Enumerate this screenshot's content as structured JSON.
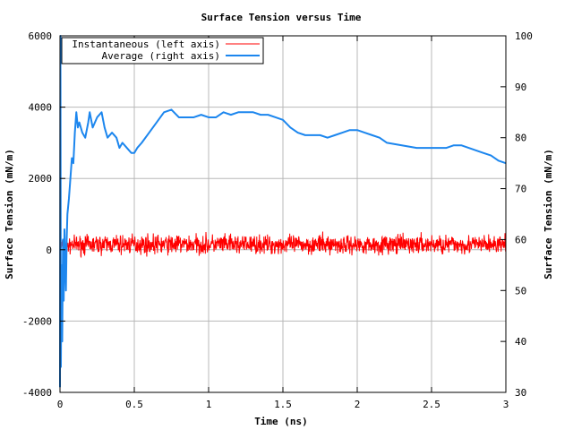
{
  "chart_data": {
    "type": "line",
    "title": "Surface Tension versus Time",
    "xlabel": "Time (ns)",
    "ylabel_left": "Surface Tension (mN/m)",
    "ylabel_right": "Surface Tension (mN/m)",
    "xlim": [
      0,
      3
    ],
    "ylim_left": [
      -4000,
      6000
    ],
    "ylim_right": [
      30,
      100
    ],
    "x_ticks": [
      0,
      0.5,
      1,
      1.5,
      2,
      2.5,
      3
    ],
    "x_tick_labels": [
      "0",
      "0.5",
      "1",
      "1.5",
      "2",
      "2.5",
      "3"
    ],
    "y_left_ticks": [
      -4000,
      -2000,
      0,
      2000,
      4000,
      6000
    ],
    "y_left_tick_labels": [
      "-4000",
      "-2000",
      "0",
      "2000",
      "4000",
      "6000"
    ],
    "y_right_ticks": [
      30,
      40,
      50,
      60,
      70,
      80,
      90,
      100
    ],
    "y_right_tick_labels": [
      "30",
      "40",
      "50",
      "60",
      "70",
      "80",
      "90",
      "100"
    ],
    "grid": true,
    "legend_position": "top-left",
    "series": [
      {
        "name": "Instantaneous (left axis)",
        "axis": "left",
        "color": "#ff0000",
        "style": "noisy band around mean",
        "x": [
          0,
          0.01,
          0.02,
          0.04,
          0.06,
          0.1,
          0.5,
          1.0,
          1.5,
          1.8,
          2.0,
          2.5,
          3.0
        ],
        "y_mean": [
          0,
          100,
          150,
          150,
          150,
          150,
          150,
          150,
          150,
          150,
          150,
          150,
          150
        ],
        "y_min": [
          -400,
          -400,
          -250,
          -200,
          -200,
          -250,
          -250,
          -250,
          -250,
          -250,
          -250,
          -250,
          -250
        ],
        "y_max": [
          400,
          400,
          350,
          350,
          350,
          500,
          550,
          550,
          500,
          550,
          500,
          550,
          500
        ]
      },
      {
        "name": "Average (right axis)",
        "axis": "right",
        "color": "#1c86ee",
        "x": [
          0,
          0.003,
          0.006,
          0.01,
          0.015,
          0.02,
          0.025,
          0.03,
          0.035,
          0.04,
          0.045,
          0.05,
          0.06,
          0.07,
          0.08,
          0.09,
          0.1,
          0.11,
          0.12,
          0.13,
          0.15,
          0.17,
          0.19,
          0.2,
          0.22,
          0.25,
          0.28,
          0.3,
          0.32,
          0.35,
          0.38,
          0.4,
          0.42,
          0.45,
          0.48,
          0.5,
          0.52,
          0.55,
          0.6,
          0.65,
          0.7,
          0.75,
          0.8,
          0.85,
          0.9,
          0.95,
          1.0,
          1.05,
          1.1,
          1.15,
          1.2,
          1.25,
          1.3,
          1.35,
          1.4,
          1.45,
          1.5,
          1.55,
          1.6,
          1.65,
          1.7,
          1.75,
          1.8,
          1.85,
          1.9,
          1.95,
          2.0,
          2.05,
          2.1,
          2.15,
          2.2,
          2.3,
          2.4,
          2.5,
          2.55,
          2.6,
          2.65,
          2.7,
          2.75,
          2.8,
          2.85,
          2.9,
          2.95,
          3.0
        ],
        "y": [
          31,
          100,
          35,
          55,
          40,
          60,
          48,
          62,
          55,
          50,
          60,
          65,
          68,
          72,
          76,
          75,
          81,
          85,
          82,
          83,
          81,
          80,
          83,
          85,
          82,
          84,
          85,
          82,
          80,
          81,
          80,
          78,
          79,
          78,
          77,
          77,
          78,
          79,
          81,
          83,
          85,
          85.5,
          84,
          84,
          84,
          84.5,
          84,
          84,
          85,
          84.5,
          85,
          85,
          85,
          84.5,
          84.5,
          84,
          83.5,
          82,
          81,
          80.5,
          80.5,
          80.5,
          80,
          80.5,
          81,
          81.5,
          81.5,
          81,
          80.5,
          80,
          79,
          78.5,
          78,
          78,
          78,
          78,
          78.5,
          78.5,
          78,
          77.5,
          77,
          76.5,
          75.5,
          75
        ]
      }
    ]
  }
}
